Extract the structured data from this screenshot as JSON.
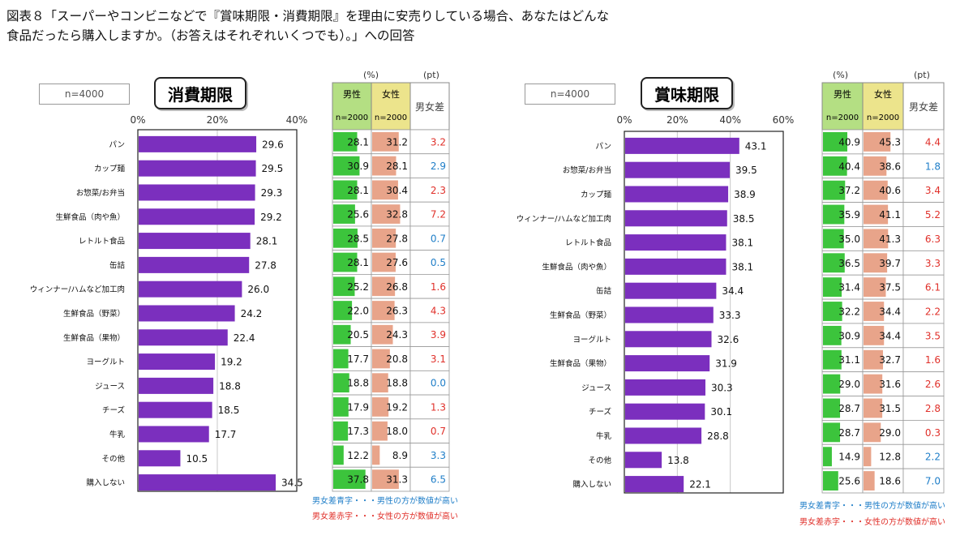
{
  "title_lines": [
    "図表８「スーパーやコンビニなどで『賞味期限・消費期限』を理由に安売りしている場合、あなたはどんな",
    "食品だったら購入しますか。（お答えはそれぞれいくつでも）。」への回答"
  ],
  "colors": {
    "bar": "#7b2fbe",
    "male_bar": "#3cc43c",
    "female_bar": "#e8a48a",
    "male_header": "#b4df83",
    "female_header": "#ece48c",
    "blue": "#1f7ec8",
    "red": "#e0302a"
  },
  "notes": {
    "blue_note": "男女差青字・・・男性の方が数値が高い",
    "red_note": "男女差赤字・・・女性の方が数値が高い"
  },
  "chart_data": [
    {
      "type": "bar",
      "title": "消費期限",
      "n_label": "n=4000",
      "axis_ticks": [
        "0%",
        "20%",
        "40%"
      ],
      "xlim": [
        0,
        40
      ],
      "categories": [
        "パン",
        "カップ麺",
        "お惣菜/お弁当",
        "生鮮食品（肉や魚）",
        "レトルト食品",
        "缶詰",
        "ウィンナー/ハムなど加工肉",
        "生鮮食品（野菜）",
        "生鮮食品（果物）",
        "ヨーグルト",
        "ジュース",
        "チーズ",
        "牛乳",
        "その他",
        "購入しない"
      ],
      "values": [
        29.6,
        29.5,
        29.3,
        29.2,
        28.1,
        27.8,
        26.0,
        24.2,
        22.4,
        19.2,
        18.8,
        18.5,
        17.7,
        10.5,
        34.5
      ],
      "labels": [
        "29.6",
        "29.5",
        "29.3",
        "29.2",
        "28.1",
        "27.8",
        "26.0",
        "24.2",
        "22.4",
        "19.2",
        "18.8",
        "18.5",
        "17.7",
        "10.5",
        "34.5"
      ],
      "table": {
        "unit_pct": "(%)",
        "unit_pt": "(pt)",
        "male_label": "男性",
        "female_label": "女性",
        "diff_label": "男女差",
        "n_sub": "n=2000",
        "male": [
          "28.1",
          "30.9",
          "28.1",
          "25.6",
          "28.5",
          "28.1",
          "25.2",
          "22.0",
          "20.5",
          "17.7",
          "18.8",
          "17.9",
          "17.3",
          "12.2",
          "37.8"
        ],
        "female": [
          "31.2",
          "28.1",
          "30.4",
          "32.8",
          "27.8",
          "27.6",
          "26.8",
          "26.3",
          "24.3",
          "20.8",
          "18.8",
          "19.2",
          "18.0",
          "8.9",
          "31.3"
        ],
        "diff": [
          "3.2",
          "2.9",
          "2.3",
          "7.2",
          "0.7",
          "0.5",
          "1.6",
          "4.3",
          "3.9",
          "3.1",
          "0.0",
          "1.3",
          "0.7",
          "3.3",
          "6.5"
        ],
        "diff_color": [
          "red",
          "blue",
          "red",
          "red",
          "blue",
          "blue",
          "red",
          "red",
          "red",
          "red",
          "blue",
          "red",
          "red",
          "blue",
          "blue"
        ]
      }
    },
    {
      "type": "bar",
      "title": "賞味期限",
      "n_label": "n=4000",
      "axis_ticks": [
        "0%",
        "20%",
        "40%",
        "60%"
      ],
      "xlim": [
        0,
        60
      ],
      "categories": [
        "パン",
        "お惣菜/お弁当",
        "カップ麺",
        "ウィンナー/ハムなど加工肉",
        "レトルト食品",
        "生鮮食品（肉や魚）",
        "缶詰",
        "生鮮食品（野菜）",
        "ヨーグルト",
        "生鮮食品（果物）",
        "ジュース",
        "チーズ",
        "牛乳",
        "その他",
        "購入しない"
      ],
      "values": [
        43.1,
        39.5,
        38.9,
        38.5,
        38.1,
        38.1,
        34.4,
        33.3,
        32.6,
        31.9,
        30.3,
        30.1,
        28.8,
        13.8,
        22.1
      ],
      "labels": [
        "43.1",
        "39.5",
        "38.9",
        "38.5",
        "38.1",
        "38.1",
        "34.4",
        "33.3",
        "32.6",
        "31.9",
        "30.3",
        "30.1",
        "28.8",
        "13.8",
        "22.1"
      ],
      "table": {
        "unit_pct": "(%)",
        "unit_pt": "(pt)",
        "male_label": "男性",
        "female_label": "女性",
        "diff_label": "男女差",
        "n_sub": "n=2000",
        "male": [
          "40.9",
          "40.4",
          "37.2",
          "35.9",
          "35.0",
          "36.5",
          "31.4",
          "32.2",
          "30.9",
          "31.1",
          "29.0",
          "28.7",
          "28.7",
          "14.9",
          "25.6"
        ],
        "female": [
          "45.3",
          "38.6",
          "40.6",
          "41.1",
          "41.3",
          "39.7",
          "37.5",
          "34.4",
          "34.4",
          "32.7",
          "31.6",
          "31.5",
          "29.0",
          "12.8",
          "18.6"
        ],
        "diff": [
          "4.4",
          "1.8",
          "3.4",
          "5.2",
          "6.3",
          "3.3",
          "6.1",
          "2.2",
          "3.5",
          "1.6",
          "2.6",
          "2.8",
          "0.3",
          "2.2",
          "7.0"
        ],
        "diff_color": [
          "red",
          "blue",
          "red",
          "red",
          "red",
          "red",
          "red",
          "red",
          "red",
          "red",
          "red",
          "red",
          "red",
          "blue",
          "blue"
        ]
      }
    }
  ]
}
